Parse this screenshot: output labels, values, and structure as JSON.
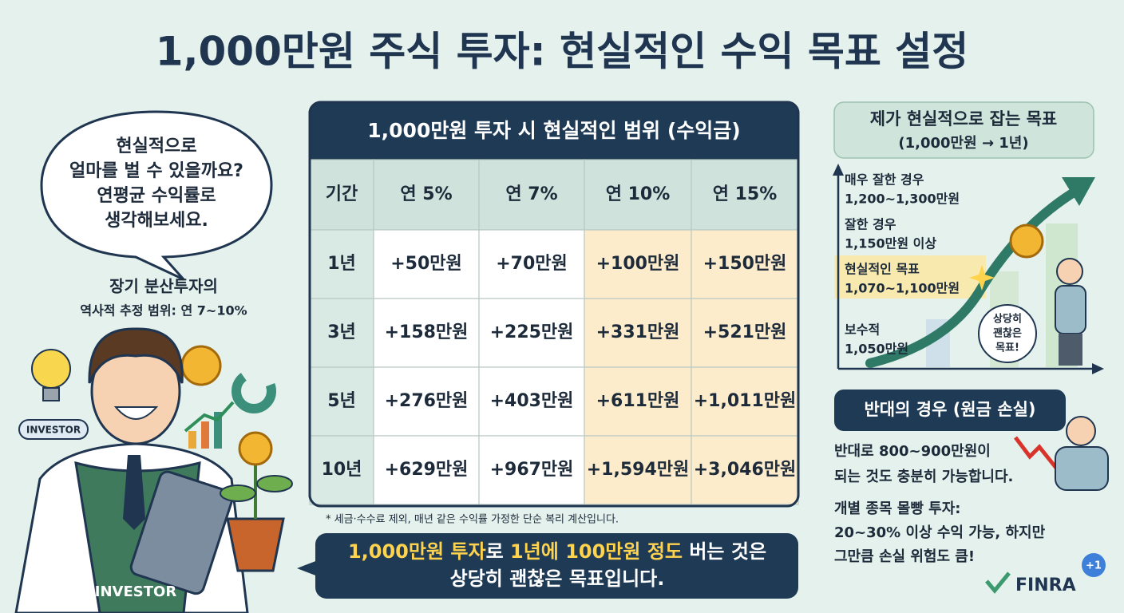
{
  "title": "1,000만원 주식 투자: 현실적인 수익 목표 설정",
  "left": {
    "bubble": [
      "현실적으로",
      "얼마를 벌 수 있을까요?",
      "연평균 수익률로",
      "생각해보세요."
    ],
    "note_title": "장기 분산투자의",
    "note_sub": "역사적 추정 범위: 연 7~10%",
    "badge": "INVESTOR",
    "shirt_label": "INVESTOR"
  },
  "table": {
    "title": "1,000만원 투자 시 현실적인 범위 (수익금)",
    "header": [
      "기간",
      "연 5%",
      "연 7%",
      "연 10%",
      "연 15%"
    ],
    "rows": [
      [
        "1년",
        "+50만원",
        "+70만원",
        "+100만원",
        "+150만원"
      ],
      [
        "3년",
        "+158만원",
        "+225만원",
        "+331만원",
        "+521만원"
      ],
      [
        "5년",
        "+276만원",
        "+403만원",
        "+611만원",
        "+1,011만원"
      ],
      [
        "10년",
        "+629만원",
        "+967만원",
        "+1,594만원",
        "+3,046만원"
      ]
    ],
    "footnote": "* 세금·수수료 제외, 매년 같은 수익률 가정한 단순 복리 계산입니다."
  },
  "callout": {
    "line1": [
      "1,000만원 투자",
      "로 ",
      "1년에 100만원 정도",
      " 버는 것은"
    ],
    "line2": "상당히 괜찮은 목표입니다."
  },
  "goal": {
    "title": "제가 현실적으로 잡는 목표",
    "subtitle": "(1,000만원 → 1년)",
    "levels": [
      {
        "label": "매우 잘한 경우",
        "range": "1,200~1,300만원"
      },
      {
        "label": "잘한 경우",
        "range": "1,150만원 이상"
      },
      {
        "label": "현실적인 목표",
        "range": "1,070~1,100만원"
      },
      {
        "label": "보수적",
        "range": "1,050만원"
      }
    ],
    "speech": [
      "상당히",
      "괜찮은",
      "목표!"
    ]
  },
  "loss": {
    "title": "반대의 경우 (원금 손실)",
    "text": [
      "반대로 800~900만원이",
      "되는 것도 충분히 가능합니다."
    ],
    "warning": [
      "개별 종목 몰빵 투자:",
      "20~30% 이상 수익 가능, 하지만",
      "그만큼 손실 위험도 큼!"
    ]
  },
  "brand": "FINRA",
  "badge": "+1"
}
